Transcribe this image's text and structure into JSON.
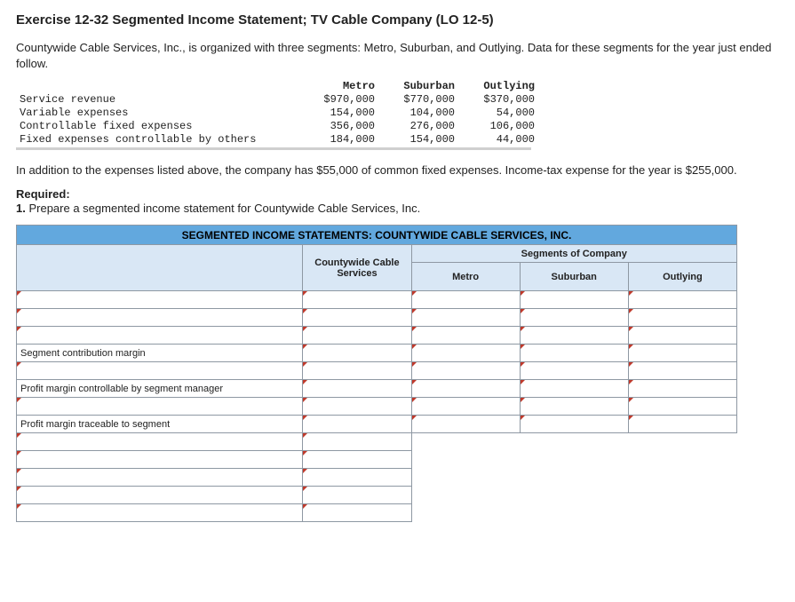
{
  "heading": "Exercise 12-32 Segmented Income Statement; TV Cable Company (LO 12-5)",
  "intro": "Countywide Cable Services, Inc., is organized with three segments: Metro, Suburban, and Outlying. Data for these segments for the year just ended follow.",
  "dataTable": {
    "columns": [
      "Metro",
      "Suburban",
      "Outlying"
    ],
    "rows": [
      {
        "label": "Service revenue",
        "vals": [
          "$970,000",
          "$770,000",
          "$370,000"
        ]
      },
      {
        "label": "Variable expenses",
        "vals": [
          "154,000",
          "104,000",
          "54,000"
        ]
      },
      {
        "label": "Controllable fixed expenses",
        "vals": [
          "356,000",
          "276,000",
          "106,000"
        ]
      },
      {
        "label": "Fixed expenses controllable by others",
        "vals": [
          "184,000",
          "154,000",
          "44,000"
        ]
      }
    ]
  },
  "afterText": "In addition to the expenses listed above, the company has $55,000 of common fixed expenses. Income-tax expense for the year is $255,000.",
  "requiredLabel": "Required:",
  "requiredItem": "1. Prepare a segmented income statement for Countywide Cable Services, Inc.",
  "worksheet": {
    "title": "SEGMENTED INCOME STATEMENTS: COUNTYWIDE CABLE SERVICES, INC.",
    "segmentsHeader": "Segments of Company",
    "totalCol": "Countywide Cable Services",
    "segCols": [
      "Metro",
      "Suburban",
      "Outlying"
    ],
    "rowLabels": {
      "r4": "Segment contribution margin",
      "r6": "Profit margin controllable by segment manager",
      "r8": "Profit margin traceable to segment"
    },
    "colors": {
      "titleBg": "#62a8de",
      "hdrBg": "#d9e7f5",
      "border": "#8e98a3",
      "tick": "#c0392b"
    }
  }
}
